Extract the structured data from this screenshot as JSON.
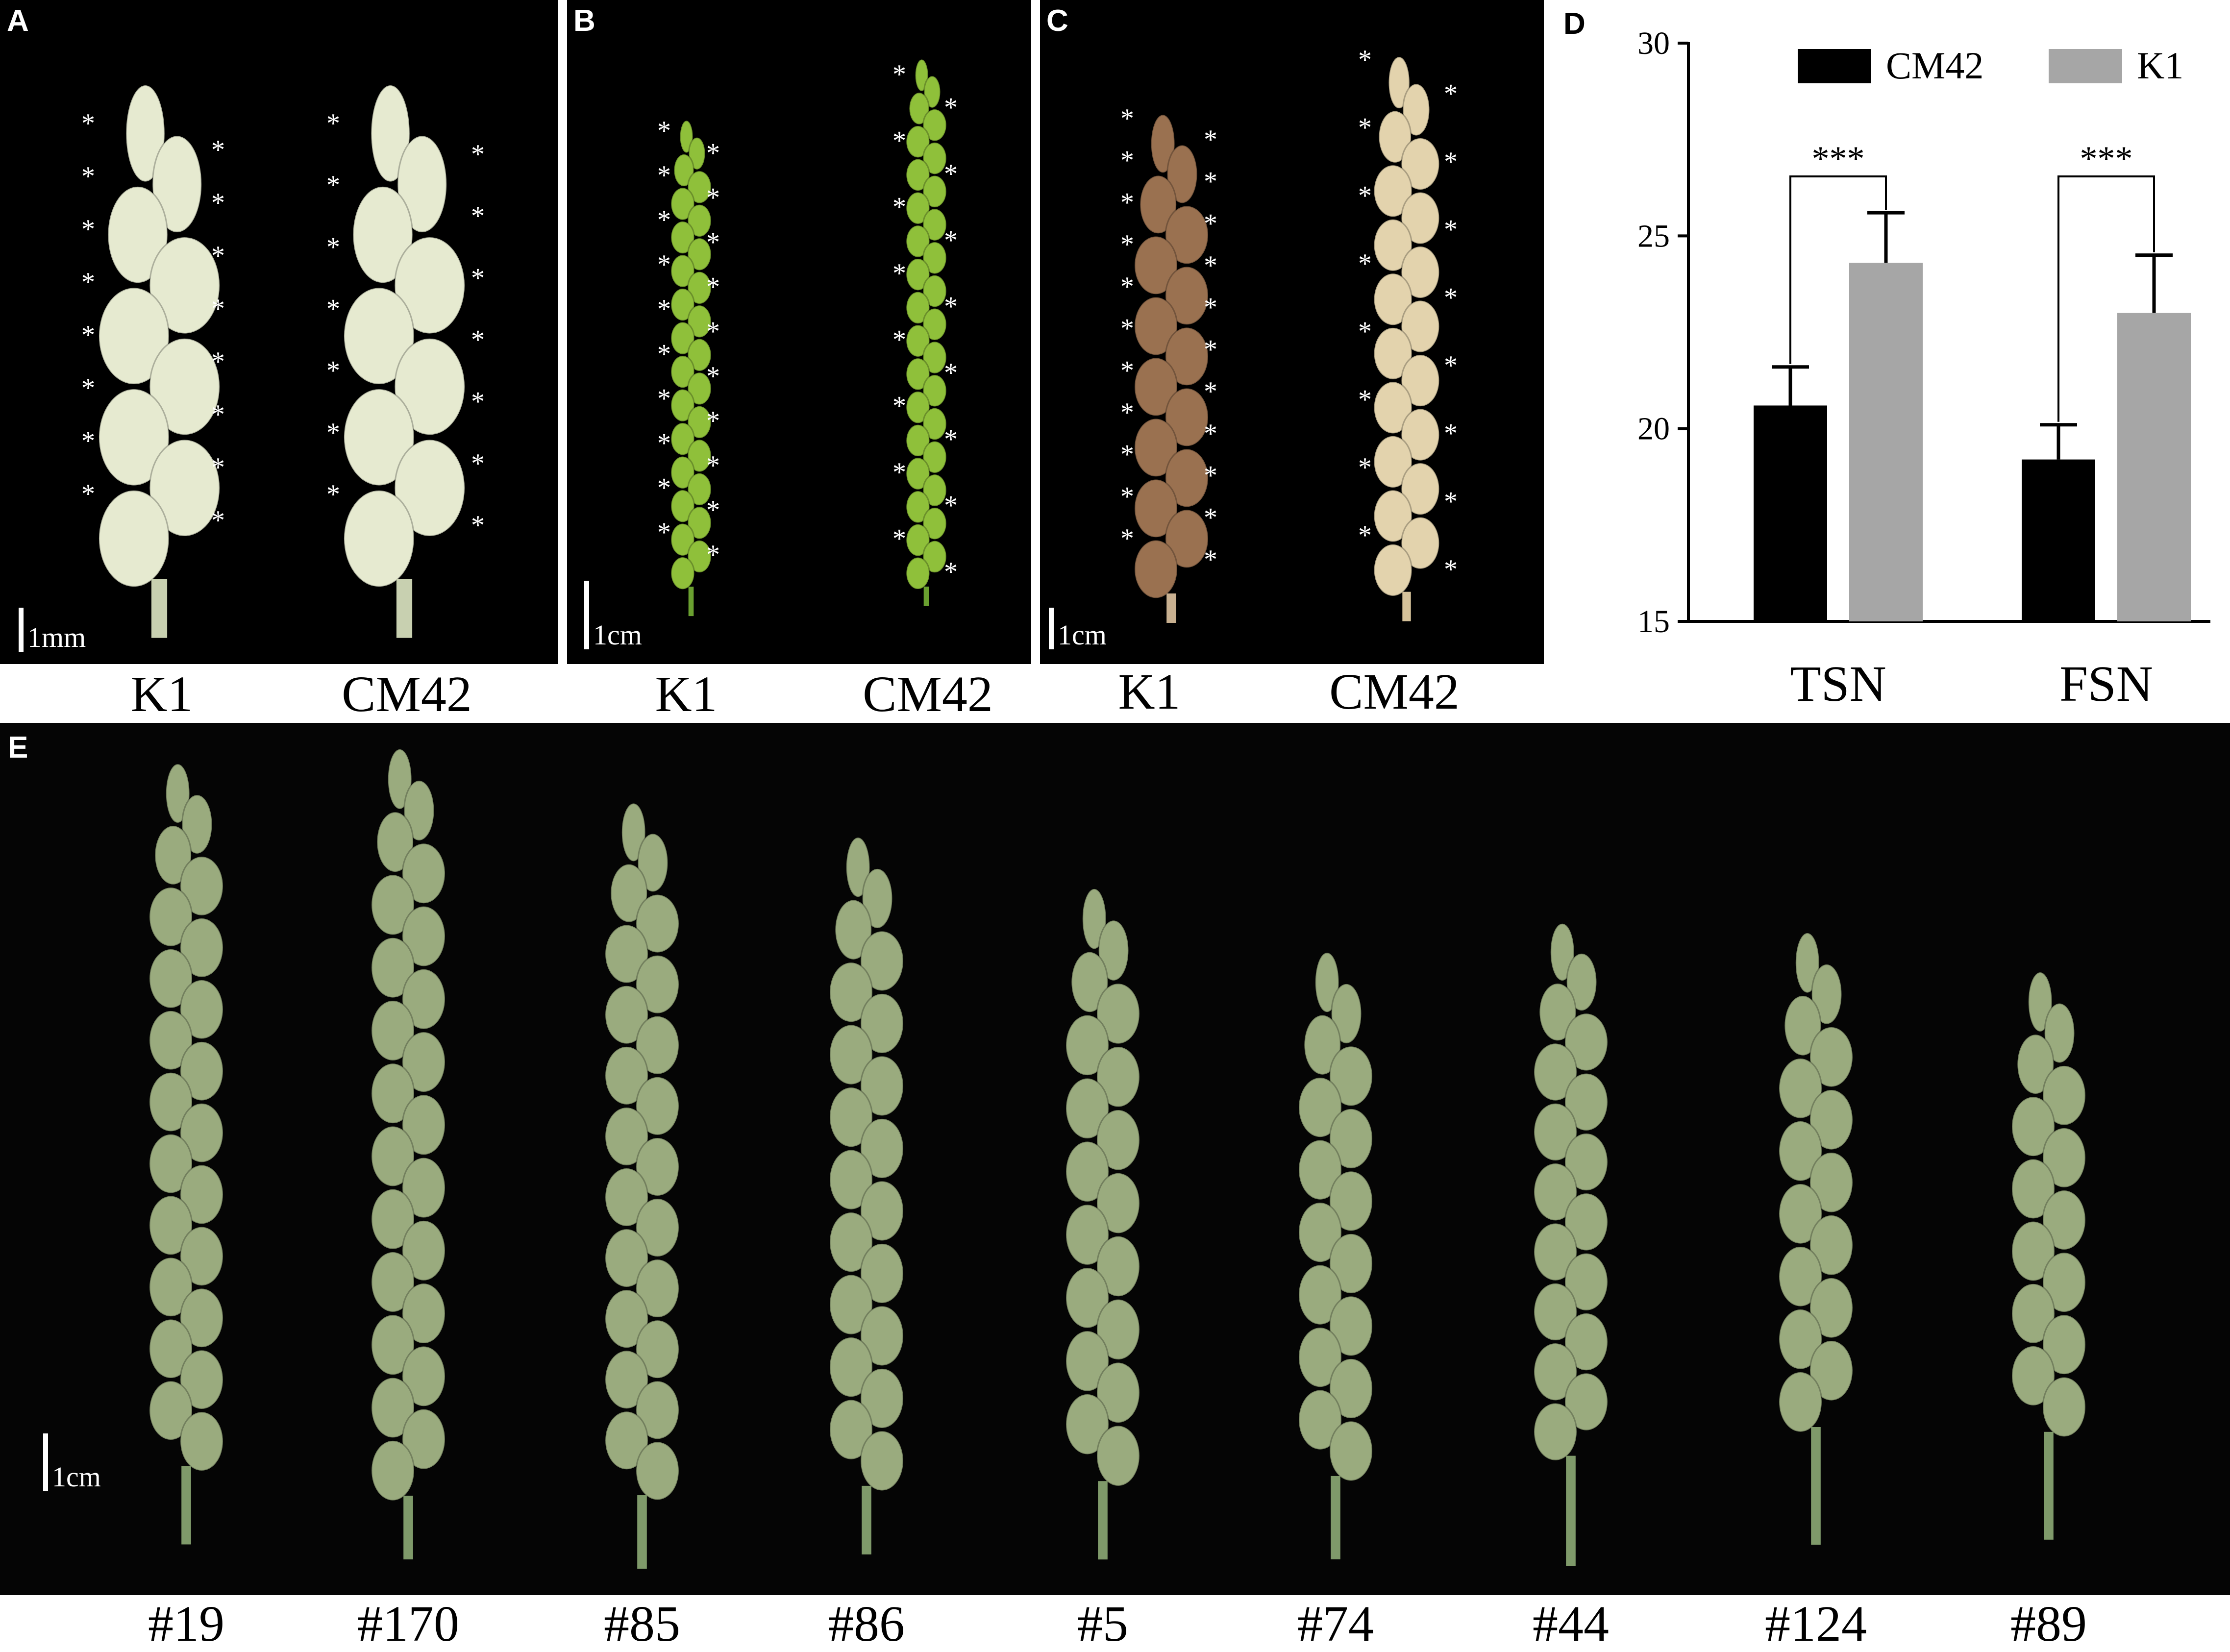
{
  "panels": {
    "A": {
      "letter": "A",
      "left_label": "K1",
      "right_label": "CM42",
      "scale": "1mm"
    },
    "B": {
      "letter": "B",
      "left_label": "K1",
      "right_label": "CM42",
      "scale": "1cm"
    },
    "C": {
      "letter": "C",
      "left_label": "K1",
      "right_label": "CM42",
      "scale": "1cm"
    },
    "D": {
      "letter": "D"
    },
    "E": {
      "letter": "E",
      "scale": "1cm",
      "lines": [
        "#19",
        "#170",
        "#85",
        "#86",
        "#5",
        "#74",
        "#44",
        "#124",
        "#89"
      ]
    }
  },
  "colors": {
    "cm42": "#000000",
    "k1": "#a6a6a6",
    "spike_immature": "#e6ead0",
    "spike_green": "#8fc03a",
    "spike_mature": "#9a7150",
    "spike_mature_cm42": "#e3d3ad",
    "spike_field": "#9aab7e"
  },
  "chart_data": {
    "type": "bar",
    "categories": [
      "TSN",
      "FSN"
    ],
    "series": [
      {
        "name": "CM42",
        "values": [
          20.6,
          19.2
        ],
        "errors": [
          1.0,
          0.9
        ]
      },
      {
        "name": "K1",
        "values": [
          24.3,
          23.0
        ],
        "errors": [
          1.3,
          1.5
        ]
      }
    ],
    "ylim": [
      15,
      30
    ],
    "yticks": [
      15,
      20,
      25,
      30
    ],
    "significance": [
      "***",
      "***"
    ],
    "legend_position": "top",
    "grid": false
  }
}
